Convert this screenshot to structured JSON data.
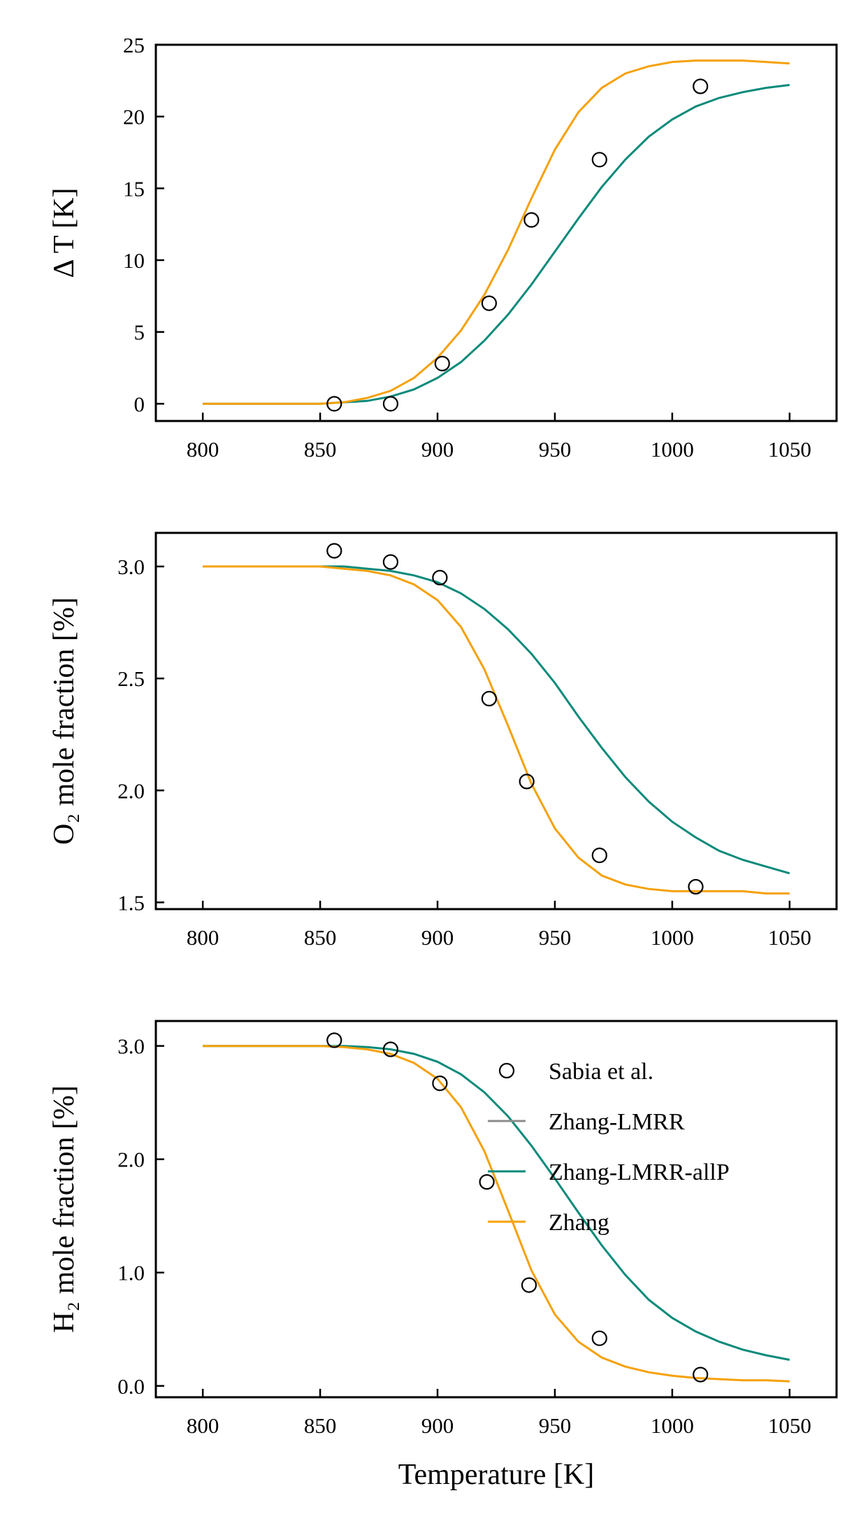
{
  "colors": {
    "zhang": "#f5a10a",
    "zhang_lmrr_allp": "#0a8a7a",
    "zhang_lmrr": "#8c8c8c",
    "sabia": "#000000"
  },
  "chart_data": [
    {
      "type": "line",
      "ylabel": "Δ T [K]",
      "xlabel": "",
      "xlim": [
        780,
        1070
      ],
      "ylim": [
        -1.2,
        25
      ],
      "xticks": [
        800,
        850,
        900,
        950,
        1000,
        1050
      ],
      "xtick_labels": [
        "800",
        "850",
        "900",
        "950",
        "1000",
        "1050"
      ],
      "yticks": [
        0,
        5,
        10,
        15,
        20,
        25
      ],
      "ytick_labels": [
        "0",
        "5",
        "10",
        "15",
        "20",
        "25"
      ],
      "grid": false,
      "series": [
        {
          "name": "Sabia et al.",
          "style": "markers",
          "x": [
            856,
            880,
            902,
            922,
            940,
            969,
            1012
          ],
          "y": [
            0.0,
            0.0,
            2.8,
            7.0,
            12.8,
            17.0,
            22.1
          ]
        },
        {
          "name": "Zhang-LMRR-allP",
          "style": "line",
          "x": [
            800,
            820,
            840,
            850,
            860,
            870,
            880,
            890,
            900,
            910,
            920,
            930,
            940,
            950,
            960,
            970,
            980,
            990,
            1000,
            1010,
            1020,
            1030,
            1040,
            1050
          ],
          "y": [
            0.0,
            0.0,
            0.0,
            0.0,
            0.1,
            0.2,
            0.5,
            1.0,
            1.8,
            2.9,
            4.4,
            6.2,
            8.3,
            10.6,
            12.9,
            15.1,
            17.0,
            18.6,
            19.8,
            20.7,
            21.3,
            21.7,
            22.0,
            22.2
          ]
        },
        {
          "name": "Zhang",
          "style": "line",
          "x": [
            800,
            820,
            840,
            850,
            860,
            870,
            880,
            890,
            900,
            910,
            920,
            930,
            940,
            950,
            960,
            970,
            980,
            990,
            1000,
            1010,
            1020,
            1030,
            1040,
            1050
          ],
          "y": [
            0.0,
            0.0,
            0.0,
            0.0,
            0.1,
            0.4,
            0.9,
            1.8,
            3.2,
            5.1,
            7.6,
            10.7,
            14.3,
            17.7,
            20.3,
            22.0,
            23.0,
            23.5,
            23.8,
            23.9,
            23.9,
            23.9,
            23.8,
            23.7
          ]
        }
      ]
    },
    {
      "type": "line",
      "ylabel": "O₂ mole fraction [%]",
      "xlabel": "",
      "xlim": [
        780,
        1070
      ],
      "ylim": [
        1.47,
        3.15
      ],
      "xticks": [
        800,
        850,
        900,
        950,
        1000,
        1050
      ],
      "xtick_labels": [
        "800",
        "850",
        "900",
        "950",
        "1000",
        "1050"
      ],
      "yticks": [
        1.5,
        2.0,
        2.5,
        3.0
      ],
      "ytick_labels": [
        "1.5",
        "2.0",
        "2.5",
        "3.0"
      ],
      "grid": false,
      "series": [
        {
          "name": "Sabia et al.",
          "style": "markers",
          "x": [
            856,
            880,
            901,
            922,
            938,
            969,
            1010
          ],
          "y": [
            3.07,
            3.02,
            2.95,
            2.41,
            2.04,
            1.71,
            1.57
          ]
        },
        {
          "name": "Zhang-LMRR-allP",
          "style": "line",
          "x": [
            800,
            820,
            840,
            850,
            860,
            870,
            880,
            890,
            900,
            910,
            920,
            930,
            940,
            950,
            960,
            970,
            980,
            990,
            1000,
            1010,
            1020,
            1030,
            1040,
            1050
          ],
          "y": [
            3.0,
            3.0,
            3.0,
            3.0,
            3.0,
            2.99,
            2.98,
            2.96,
            2.93,
            2.88,
            2.81,
            2.72,
            2.61,
            2.48,
            2.33,
            2.19,
            2.06,
            1.95,
            1.86,
            1.79,
            1.73,
            1.69,
            1.66,
            1.63
          ]
        },
        {
          "name": "Zhang",
          "style": "line",
          "x": [
            800,
            820,
            840,
            850,
            860,
            870,
            880,
            890,
            900,
            910,
            920,
            930,
            940,
            950,
            960,
            970,
            980,
            990,
            1000,
            1010,
            1020,
            1030,
            1040,
            1050
          ],
          "y": [
            3.0,
            3.0,
            3.0,
            3.0,
            2.99,
            2.98,
            2.96,
            2.92,
            2.85,
            2.73,
            2.54,
            2.29,
            2.03,
            1.83,
            1.7,
            1.62,
            1.58,
            1.56,
            1.55,
            1.55,
            1.55,
            1.55,
            1.54,
            1.54
          ]
        }
      ]
    },
    {
      "type": "line",
      "ylabel": "H₂ mole fraction [%]",
      "xlabel": "Temperature [K]",
      "xlim": [
        780,
        1070
      ],
      "ylim": [
        -0.1,
        3.22
      ],
      "xticks": [
        800,
        850,
        900,
        950,
        1000,
        1050
      ],
      "xtick_labels": [
        "800",
        "850",
        "900",
        "950",
        "1000",
        "1050"
      ],
      "yticks": [
        0.0,
        1.0,
        2.0,
        3.0
      ],
      "ytick_labels": [
        "0.0",
        "1.0",
        "2.0",
        "3.0"
      ],
      "grid": false,
      "legend": {
        "placement": "upper-right",
        "entries": [
          {
            "label": "Sabia et al.",
            "style": "marker",
            "color_key": "sabia"
          },
          {
            "label": "Zhang-LMRR",
            "style": "line",
            "color_key": "zhang_lmrr"
          },
          {
            "label": "Zhang-LMRR-allP",
            "style": "line",
            "color_key": "zhang_lmrr_allp"
          },
          {
            "label": "Zhang",
            "style": "line",
            "color_key": "zhang"
          }
        ]
      },
      "series": [
        {
          "name": "Sabia et al.",
          "style": "markers",
          "x": [
            856,
            880,
            901,
            921,
            939,
            969,
            1012
          ],
          "y": [
            3.05,
            2.97,
            2.67,
            1.8,
            0.89,
            0.42,
            0.1
          ]
        },
        {
          "name": "Zhang-LMRR-allP",
          "style": "line",
          "x": [
            800,
            820,
            840,
            850,
            860,
            870,
            880,
            890,
            900,
            910,
            920,
            930,
            940,
            950,
            960,
            970,
            980,
            990,
            1000,
            1010,
            1020,
            1030,
            1040,
            1050
          ],
          "y": [
            3.0,
            3.0,
            3.0,
            3.0,
            3.0,
            2.99,
            2.97,
            2.93,
            2.86,
            2.75,
            2.59,
            2.38,
            2.12,
            1.83,
            1.53,
            1.24,
            0.98,
            0.76,
            0.6,
            0.48,
            0.39,
            0.32,
            0.27,
            0.23
          ]
        },
        {
          "name": "Zhang",
          "style": "line",
          "x": [
            800,
            820,
            840,
            850,
            860,
            870,
            880,
            890,
            900,
            910,
            920,
            930,
            940,
            950,
            960,
            970,
            980,
            990,
            1000,
            1010,
            1020,
            1030,
            1040,
            1050
          ],
          "y": [
            3.0,
            3.0,
            3.0,
            3.0,
            2.99,
            2.97,
            2.93,
            2.85,
            2.71,
            2.46,
            2.07,
            1.55,
            1.02,
            0.63,
            0.39,
            0.25,
            0.17,
            0.12,
            0.09,
            0.07,
            0.06,
            0.05,
            0.05,
            0.04
          ]
        }
      ]
    }
  ]
}
